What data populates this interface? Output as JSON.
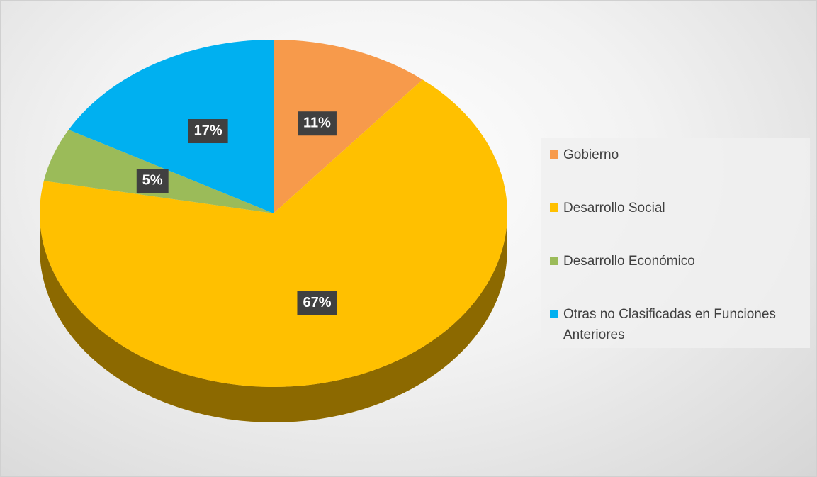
{
  "chart_data": {
    "type": "pie",
    "categories": [
      "Gobierno",
      "Desarrollo Social",
      "Desarrollo Económico",
      "Otras no Clasificadas en Funciones Anteriores"
    ],
    "values": [
      11,
      67,
      5,
      17
    ],
    "value_labels": [
      "11%",
      "67%",
      "5%",
      "17%"
    ],
    "colors": [
      "#f79a4b",
      "#ffc000",
      "#9bbb59",
      "#00b0f0"
    ],
    "legend": "right"
  }
}
